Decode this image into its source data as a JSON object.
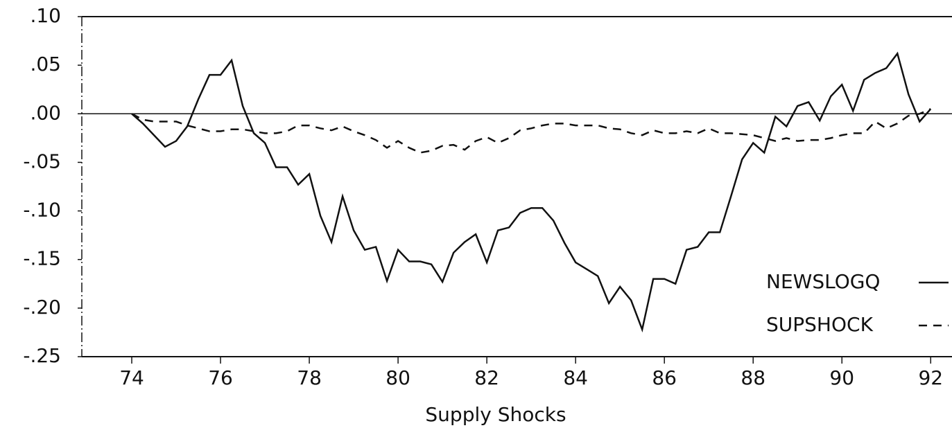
{
  "chart_data": {
    "type": "line",
    "xlabel": "Supply Shocks",
    "x": [
      74,
      74.25,
      74.5,
      74.75,
      75,
      75.25,
      75.5,
      75.75,
      76,
      76.25,
      76.5,
      76.75,
      77,
      77.25,
      77.5,
      77.75,
      78,
      78.25,
      78.5,
      78.75,
      79,
      79.25,
      79.5,
      79.75,
      80,
      80.25,
      80.5,
      80.75,
      81,
      81.25,
      81.5,
      81.75,
      82,
      82.25,
      82.5,
      82.75,
      83,
      83.25,
      83.5,
      83.75,
      84,
      84.25,
      84.5,
      84.75,
      85,
      85.25,
      85.5,
      85.75,
      86,
      86.25,
      86.5,
      86.75,
      87,
      87.25,
      87.5,
      87.75,
      88,
      88.25,
      88.5,
      88.75,
      89,
      89.25,
      89.5,
      89.75,
      90,
      90.25,
      90.5,
      90.75,
      91,
      91.25,
      91.5,
      91.75,
      92
    ],
    "series": [
      {
        "name": "NEWSLOGQ",
        "color": "#111111",
        "linestyle": "solid",
        "values": [
          0,
          -0.01,
          -0.022,
          -0.034,
          -0.028,
          -0.013,
          0.015,
          0.04,
          0.04,
          0.055,
          0.008,
          -0.02,
          -0.03,
          -0.055,
          -0.055,
          -0.073,
          -0.062,
          -0.105,
          -0.132,
          -0.085,
          -0.12,
          -0.14,
          -0.137,
          -0.172,
          -0.14,
          -0.152,
          -0.152,
          -0.155,
          -0.173,
          -0.143,
          -0.132,
          -0.124,
          -0.153,
          -0.12,
          -0.117,
          -0.102,
          -0.097,
          -0.097,
          -0.11,
          -0.133,
          -0.153,
          -0.16,
          -0.167,
          -0.195,
          -0.178,
          -0.192,
          -0.222,
          -0.17,
          -0.17,
          -0.175,
          -0.14,
          -0.137,
          -0.122,
          -0.122,
          -0.085,
          -0.047,
          -0.03,
          -0.04,
          -0.003,
          -0.013,
          0.008,
          0.012,
          -0.007,
          0.018,
          0.03,
          0.003,
          0.035,
          0.042,
          0.047,
          0.062,
          0.02,
          -0.008,
          0.005
        ]
      },
      {
        "name": "SUPSHOCK",
        "color": "#111111",
        "linestyle": "dashed",
        "values": [
          0,
          -0.006,
          -0.008,
          -0.008,
          -0.008,
          -0.012,
          -0.015,
          -0.018,
          -0.018,
          -0.016,
          -0.016,
          -0.018,
          -0.02,
          -0.02,
          -0.018,
          -0.012,
          -0.012,
          -0.015,
          -0.017,
          -0.013,
          -0.018,
          -0.022,
          -0.027,
          -0.035,
          -0.028,
          -0.035,
          -0.04,
          -0.038,
          -0.033,
          -0.032,
          -0.037,
          -0.028,
          -0.024,
          -0.03,
          -0.025,
          -0.017,
          -0.015,
          -0.012,
          -0.01,
          -0.01,
          -0.012,
          -0.012,
          -0.012,
          -0.015,
          -0.016,
          -0.02,
          -0.022,
          -0.017,
          -0.02,
          -0.02,
          -0.018,
          -0.02,
          -0.015,
          -0.02,
          -0.02,
          -0.021,
          -0.022,
          -0.025,
          -0.028,
          -0.025,
          -0.028,
          -0.027,
          -0.027,
          -0.025,
          -0.022,
          -0.02,
          -0.02,
          -0.008,
          -0.015,
          -0.01,
          -0.002,
          0,
          0.005
        ]
      }
    ],
    "xlim": [
      72.875,
      92.48
    ],
    "xticks": [
      74,
      76,
      78,
      80,
      82,
      84,
      86,
      88,
      90,
      92
    ],
    "ylim": [
      -0.25,
      0.1
    ],
    "yticks": [
      {
        "value": 0.1,
        "label": ".10"
      },
      {
        "value": 0.05,
        "label": ".05"
      },
      {
        "value": 0,
        "label": ".00"
      },
      {
        "value": -0.05,
        "label": "-.05"
      },
      {
        "value": -0.1,
        "label": "-.10"
      },
      {
        "value": -0.15,
        "label": "-.15"
      },
      {
        "value": -0.2,
        "label": "-.20"
      },
      {
        "value": -0.25,
        "label": "-.25"
      }
    ],
    "legend": "lower right"
  }
}
